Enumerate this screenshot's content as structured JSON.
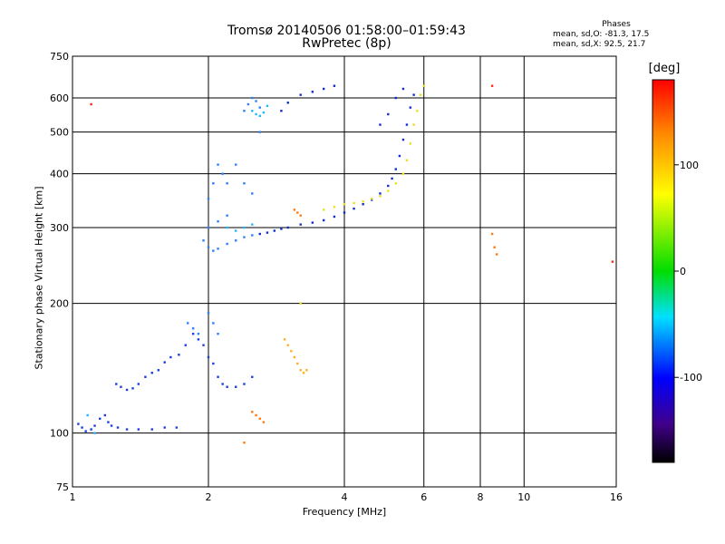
{
  "page": {
    "title": "Tromsø 20140506 01:58:00–01:59:43",
    "subtitle": "RwPretec (8p)",
    "stats": {
      "title": "Phases",
      "o_line": "mean, sd,O:  -81.3, 17.5",
      "x_line": "mean, sd,X:  92.5, 21.7"
    },
    "colorbar_unit": "[deg]"
  },
  "chart_data": {
    "type": "scatter",
    "title": "Tromsø 20140506 01:58:00–01:59:43",
    "subtitle": "RwPretec (8p)",
    "xlabel": "Frequency [MHz]",
    "ylabel": "Stationary phase Virtual Height [km]",
    "x_scale": "log",
    "y_scale": "log",
    "xlim": [
      1,
      16
    ],
    "ylim": [
      75,
      750
    ],
    "x_ticks": [
      1,
      2,
      4,
      6,
      8,
      10,
      16
    ],
    "x_ticklabels": [
      "1",
      "2",
      "4",
      "6",
      "8",
      "10",
      "16"
    ],
    "y_ticks": [
      75,
      100,
      200,
      300,
      400,
      500,
      600,
      750
    ],
    "y_ticklabels": [
      "75",
      "100",
      "200",
      "300",
      "400",
      "500",
      "600",
      "750"
    ],
    "grid": true,
    "colorbar": {
      "label": "[deg]",
      "range": [
        -180,
        180
      ],
      "ticks": [
        100,
        0,
        -100
      ],
      "ticklabels": [
        "100",
        "0",
        "-100"
      ]
    },
    "series": [
      {
        "color": "#1a3fe0",
        "phase": -100,
        "points": [
          [
            1.03,
            105
          ],
          [
            1.05,
            103
          ],
          [
            1.07,
            101
          ],
          [
            1.1,
            102
          ],
          [
            1.12,
            104
          ],
          [
            1.15,
            108
          ],
          [
            1.18,
            110
          ],
          [
            1.2,
            106
          ],
          [
            1.22,
            104
          ],
          [
            1.26,
            103
          ],
          [
            1.32,
            102
          ],
          [
            1.4,
            102
          ],
          [
            1.5,
            102
          ],
          [
            1.6,
            103
          ],
          [
            1.7,
            103
          ],
          [
            1.25,
            130
          ],
          [
            1.28,
            128
          ],
          [
            1.32,
            126
          ],
          [
            1.36,
            127
          ],
          [
            1.4,
            130
          ],
          [
            1.45,
            135
          ],
          [
            1.5,
            138
          ],
          [
            1.55,
            140
          ],
          [
            1.6,
            146
          ],
          [
            1.65,
            150
          ],
          [
            1.72,
            152
          ],
          [
            1.78,
            160
          ],
          [
            1.85,
            170
          ],
          [
            1.9,
            165
          ],
          [
            1.95,
            160
          ],
          [
            2.0,
            150
          ],
          [
            2.05,
            145
          ],
          [
            2.1,
            135
          ],
          [
            2.15,
            130
          ],
          [
            2.2,
            128
          ],
          [
            2.3,
            128
          ],
          [
            2.4,
            130
          ],
          [
            2.5,
            135
          ]
        ]
      },
      {
        "color": "#0f30c8",
        "phase": -95,
        "points": [
          [
            2.6,
            290
          ],
          [
            2.7,
            292
          ],
          [
            2.8,
            295
          ],
          [
            2.9,
            298
          ],
          [
            3.0,
            300
          ],
          [
            3.2,
            305
          ],
          [
            3.4,
            308
          ],
          [
            3.6,
            312
          ],
          [
            3.8,
            318
          ],
          [
            4.0,
            325
          ],
          [
            4.2,
            332
          ],
          [
            4.4,
            340
          ],
          [
            4.6,
            348
          ],
          [
            4.8,
            360
          ],
          [
            5.0,
            375
          ],
          [
            5.1,
            390
          ],
          [
            5.2,
            410
          ],
          [
            5.3,
            440
          ],
          [
            5.4,
            480
          ],
          [
            5.5,
            520
          ],
          [
            5.6,
            570
          ],
          [
            5.7,
            610
          ],
          [
            2.9,
            560
          ],
          [
            3.0,
            585
          ],
          [
            3.2,
            610
          ],
          [
            3.4,
            620
          ],
          [
            3.6,
            630
          ],
          [
            3.8,
            640
          ],
          [
            4.8,
            520
          ],
          [
            5.0,
            550
          ],
          [
            5.2,
            600
          ],
          [
            5.4,
            630
          ]
        ]
      },
      {
        "color": "#2a80ff",
        "phase": -80,
        "points": [
          [
            1.95,
            280
          ],
          [
            2.0,
            270
          ],
          [
            2.05,
            265
          ],
          [
            2.1,
            268
          ],
          [
            2.2,
            275
          ],
          [
            2.3,
            280
          ],
          [
            2.4,
            285
          ],
          [
            2.5,
            288
          ],
          [
            2.0,
            300
          ],
          [
            2.1,
            310
          ],
          [
            2.2,
            320
          ],
          [
            2.0,
            350
          ],
          [
            2.05,
            380
          ],
          [
            2.1,
            420
          ],
          [
            2.15,
            400
          ],
          [
            2.2,
            380
          ],
          [
            2.3,
            420
          ],
          [
            2.4,
            380
          ],
          [
            2.5,
            360
          ],
          [
            2.6,
            500
          ],
          [
            2.4,
            560
          ],
          [
            2.45,
            580
          ],
          [
            2.5,
            600
          ],
          [
            2.55,
            590
          ],
          [
            2.6,
            570
          ],
          [
            1.8,
            180
          ],
          [
            1.85,
            175
          ],
          [
            1.9,
            170
          ],
          [
            2.0,
            190
          ],
          [
            2.05,
            180
          ],
          [
            2.1,
            170
          ]
        ]
      },
      {
        "color": "#1fb8ff",
        "phase": -60,
        "points": [
          [
            2.5,
            560
          ],
          [
            2.55,
            550
          ],
          [
            2.6,
            545
          ],
          [
            2.65,
            555
          ],
          [
            2.7,
            575
          ],
          [
            2.2,
            300
          ],
          [
            2.3,
            295
          ],
          [
            2.4,
            300
          ],
          [
            2.5,
            305
          ],
          [
            1.08,
            110
          ],
          [
            1.12,
            100
          ]
        ]
      },
      {
        "color": "#e8e020",
        "phase": 95,
        "points": [
          [
            3.6,
            330
          ],
          [
            3.8,
            335
          ],
          [
            4.0,
            340
          ],
          [
            4.2,
            342
          ],
          [
            4.4,
            345
          ],
          [
            4.6,
            350
          ],
          [
            4.8,
            355
          ],
          [
            5.0,
            365
          ],
          [
            5.2,
            380
          ],
          [
            5.4,
            400
          ],
          [
            5.5,
            430
          ],
          [
            5.6,
            470
          ],
          [
            5.7,
            520
          ],
          [
            5.8,
            560
          ],
          [
            5.9,
            610
          ],
          [
            6.0,
            640
          ],
          [
            3.2,
            200
          ]
        ]
      },
      {
        "color": "#ffb020",
        "phase": 120,
        "points": [
          [
            3.05,
            155
          ],
          [
            3.1,
            150
          ],
          [
            3.15,
            145
          ],
          [
            3.2,
            140
          ],
          [
            3.25,
            138
          ],
          [
            3.3,
            140
          ],
          [
            2.95,
            165
          ],
          [
            3.0,
            160
          ]
        ]
      },
      {
        "color": "#ff7a10",
        "phase": 150,
        "points": [
          [
            2.5,
            112
          ],
          [
            2.55,
            110
          ],
          [
            2.6,
            108
          ],
          [
            2.65,
            106
          ],
          [
            2.4,
            95
          ],
          [
            3.1,
            330
          ],
          [
            3.15,
            325
          ],
          [
            3.2,
            320
          ],
          [
            8.5,
            290
          ],
          [
            8.6,
            270
          ],
          [
            8.7,
            260
          ]
        ]
      },
      {
        "color": "#ff2a10",
        "phase": 170,
        "points": [
          [
            8.5,
            640
          ],
          [
            1.1,
            580
          ],
          [
            15.7,
            250
          ]
        ]
      }
    ]
  }
}
